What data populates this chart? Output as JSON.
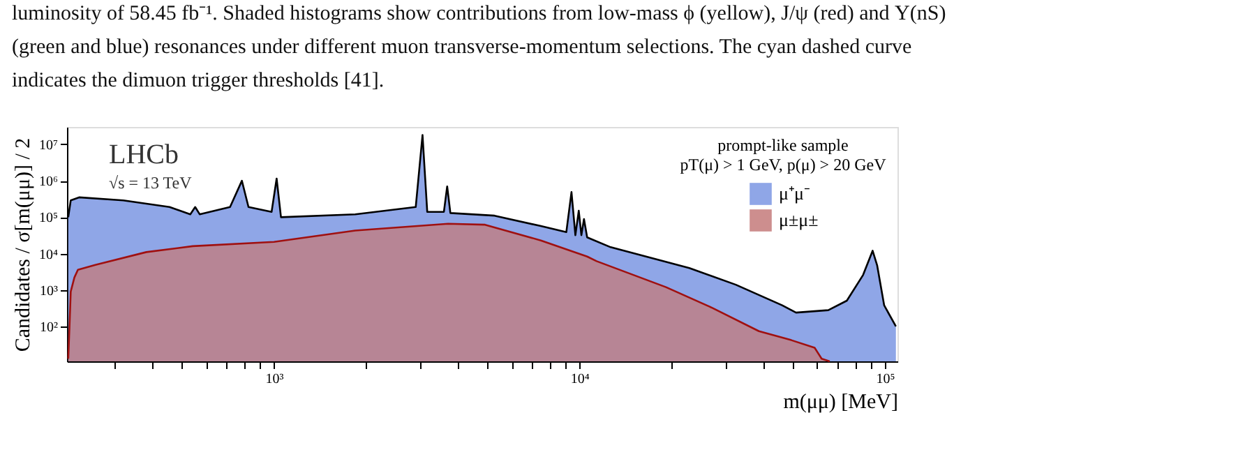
{
  "chart_data": {
    "type": "area",
    "xlabel": "m(μμ)  [MeV]",
    "ylabel": "Candidates / σ[m(μμ)] / 2",
    "legend_title": "prompt-like sample",
    "annotations": [
      "luminosity of 58.45 fb⁻¹. Shaded histograms show contributions from low-mass ϕ (yellow), J/ψ (red) and Υ(nS)",
      "(green and blue) resonances under different muon transverse-momentum selections.  The cyan dashed curve",
      "indicates the dimuon trigger thresholds [41].",
      "LHCb",
      "√s = 13 TeV",
      "pT(μ) > 1 GeV, p(μ) > 20 GeV"
    ],
    "series": [
      {
        "name": "μ⁺μ⁻",
        "color": "#7b97e3",
        "x": [
          212,
          216,
          230,
          321,
          455,
          532,
          552,
          571,
          718,
          785,
          825,
          982,
          1020,
          1054,
          1845,
          2911,
          3064,
          3175,
          3600,
          3690,
          3780,
          5273,
          7480,
          9060,
          9420,
          9700,
          9950,
          10150,
          10350,
          10600,
          12650,
          22900,
          32500,
          46100,
          51200,
          65300,
          75100,
          84900,
          91200,
          94400,
          99500,
          108700
        ],
        "values": [
          100000,
          290000,
          350000,
          290000,
          190000,
          120000,
          190000,
          120000,
          190000,
          1000000,
          190000,
          140000,
          1150000,
          100000,
          120000,
          190000,
          18000000,
          140000,
          140000,
          700000,
          130000,
          110000,
          57000,
          39000,
          490000,
          32000,
          150000,
          32000,
          89000,
          28000,
          15000,
          4000,
          1400,
          380,
          240,
          280,
          510,
          2600,
          12000,
          4700,
          380,
          100
        ]
      },
      {
        "name": "μ±μ±",
        "color": "#c47a7a",
        "x": [
          212,
          214,
          216,
          222,
          228,
          260,
          382,
          542,
          1000,
          1845,
          3715,
          4910,
          7480,
          10600,
          11380,
          19200,
          27300,
          38700,
          49400,
          58900,
          62100,
          66000
        ],
        "values": [
          13,
          100,
          900,
          2200,
          3600,
          4900,
          11000,
          16000,
          21000,
          43000,
          66000,
          62000,
          23000,
          8300,
          6200,
          1200,
          320,
          74,
          42,
          26,
          13,
          11
        ]
      }
    ],
    "xlim": [
      210,
      110000
    ],
    "ylim": [
      11,
      30000000
    ],
    "xticks": [
      {
        "value": 300,
        "label": null
      },
      {
        "value": 400,
        "label": null
      },
      {
        "value": 500,
        "label": null
      },
      {
        "value": 600,
        "label": null
      },
      {
        "value": 700,
        "label": null
      },
      {
        "value": 800,
        "label": null
      },
      {
        "value": 900,
        "label": null
      },
      {
        "value": 1000,
        "label": "10³"
      },
      {
        "value": 2000,
        "label": null
      },
      {
        "value": 3000,
        "label": null
      },
      {
        "value": 4000,
        "label": null
      },
      {
        "value": 5000,
        "label": null
      },
      {
        "value": 6000,
        "label": null
      },
      {
        "value": 7000,
        "label": null
      },
      {
        "value": 8000,
        "label": null
      },
      {
        "value": 9000,
        "label": null
      },
      {
        "value": 10000,
        "label": "10⁴"
      },
      {
        "value": 20000,
        "label": null
      },
      {
        "value": 30000,
        "label": null
      },
      {
        "value": 40000,
        "label": null
      },
      {
        "value": 50000,
        "label": null
      },
      {
        "value": 60000,
        "label": null
      },
      {
        "value": 70000,
        "label": null
      },
      {
        "value": 80000,
        "label": null
      },
      {
        "value": 90000,
        "label": null
      },
      {
        "value": 100000,
        "label": "10⁵"
      }
    ],
    "yticks": [
      {
        "value": 100,
        "label": "10²"
      },
      {
        "value": 1000,
        "label": "10³"
      },
      {
        "value": 10000,
        "label": "10⁴"
      },
      {
        "value": 100000,
        "label": "10⁵"
      },
      {
        "value": 1000000,
        "label": "10⁶"
      },
      {
        "value": 10000000,
        "label": "10⁷"
      }
    ],
    "log": "xy",
    "grid": false,
    "legend": "top right"
  }
}
